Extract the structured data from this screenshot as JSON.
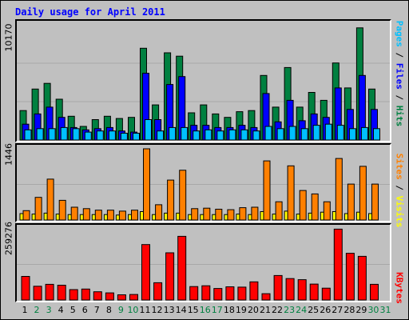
{
  "title": "Daily usage for April 2011",
  "colors": {
    "hits": "#008040",
    "files": "#0000ff",
    "pages": "#00c0ff",
    "visits": "#ffff00",
    "sites": "#ff8000",
    "kbytes": "#ff0000",
    "weekday_label": "#000000",
    "weekend_label": "#008040"
  },
  "legend": {
    "pages": "Pages",
    "files": "Files",
    "hits": "Hits",
    "sites": "Sites",
    "visits": "Visits",
    "kbytes": "KBytes",
    "separator": " / "
  },
  "chart_data": [
    {
      "type": "bar",
      "title": "Daily usage for April 2011",
      "ymax_label": "10170",
      "ylim": [
        0,
        10170
      ],
      "categories": [
        "1",
        "2",
        "3",
        "4",
        "5",
        "6",
        "7",
        "8",
        "9",
        "10",
        "11",
        "12",
        "13",
        "14",
        "15",
        "16",
        "17",
        "18",
        "19",
        "20",
        "21",
        "22",
        "23",
        "24",
        "25",
        "26",
        "27",
        "28",
        "29",
        "30",
        "31"
      ],
      "weekend_days": [
        "2",
        "3",
        "9",
        "10",
        "16",
        "17",
        "23",
        "24",
        "30",
        "31"
      ],
      "grid": true,
      "series": [
        {
          "name": "Hits",
          "color": "#008040",
          "values": [
            2600,
            4500,
            5000,
            3600,
            2100,
            1200,
            1800,
            2100,
            1900,
            2000,
            8100,
            3100,
            7700,
            7400,
            2400,
            3100,
            2300,
            2000,
            2500,
            2600,
            5700,
            2900,
            6400,
            2900,
            4200,
            3500,
            6800,
            4600,
            9900,
            4500,
            0
          ]
        },
        {
          "name": "Files",
          "color": "#0000ff",
          "values": [
            1400,
            2300,
            2900,
            2000,
            1100,
            900,
            1000,
            1100,
            800,
            700,
            5900,
            1800,
            4900,
            5600,
            1300,
            1300,
            1100,
            1100,
            1300,
            1100,
            4100,
            1600,
            3500,
            1700,
            2300,
            2000,
            4600,
            2700,
            5700,
            2700,
            0
          ]
        },
        {
          "name": "Pages",
          "color": "#00c0ff",
          "values": [
            900,
            1000,
            1000,
            1100,
            1000,
            700,
            800,
            800,
            600,
            600,
            1800,
            800,
            1100,
            1100,
            800,
            900,
            800,
            900,
            900,
            800,
            1200,
            1000,
            1200,
            1000,
            1300,
            1400,
            1300,
            1000,
            1100,
            1000,
            0
          ]
        }
      ]
    },
    {
      "type": "bar",
      "ymax_label": "1446",
      "ylim": [
        0,
        1446
      ],
      "categories": [
        "1",
        "2",
        "3",
        "4",
        "5",
        "6",
        "7",
        "8",
        "9",
        "10",
        "11",
        "12",
        "13",
        "14",
        "15",
        "16",
        "17",
        "18",
        "19",
        "20",
        "21",
        "22",
        "23",
        "24",
        "25",
        "26",
        "27",
        "28",
        "29",
        "30",
        "31"
      ],
      "grid": true,
      "series": [
        {
          "name": "Visits",
          "color": "#ffff00",
          "values": [
            130,
            120,
            140,
            120,
            110,
            110,
            110,
            110,
            100,
            110,
            170,
            110,
            140,
            140,
            110,
            110,
            110,
            110,
            120,
            110,
            170,
            120,
            180,
            120,
            140,
            160,
            170,
            130,
            160,
            130,
            0
          ]
        },
        {
          "name": "Sites",
          "color": "#ff8000",
          "values": [
            190,
            460,
            830,
            400,
            260,
            230,
            200,
            200,
            180,
            200,
            1446,
            310,
            810,
            1010,
            230,
            240,
            220,
            210,
            250,
            260,
            1200,
            370,
            1100,
            600,
            530,
            370,
            1250,
            730,
            1090,
            730,
            0
          ]
        }
      ]
    },
    {
      "type": "bar",
      "ymax_label": "259276",
      "ylim": [
        0,
        259276
      ],
      "categories": [
        "1",
        "2",
        "3",
        "4",
        "5",
        "6",
        "7",
        "8",
        "9",
        "10",
        "11",
        "12",
        "13",
        "14",
        "15",
        "16",
        "17",
        "18",
        "19",
        "20",
        "21",
        "22",
        "23",
        "24",
        "25",
        "26",
        "27",
        "28",
        "29",
        "30",
        "31"
      ],
      "grid": true,
      "series": [
        {
          "name": "KBytes",
          "color": "#ff0000",
          "values": [
            86000,
            50000,
            57000,
            54000,
            38000,
            40000,
            30000,
            26000,
            19000,
            20000,
            202000,
            63000,
            172000,
            232000,
            49000,
            52000,
            42000,
            48000,
            47000,
            66000,
            23000,
            89000,
            78000,
            74000,
            58000,
            43000,
            258000,
            170000,
            159000,
            57000,
            0
          ]
        }
      ]
    }
  ]
}
